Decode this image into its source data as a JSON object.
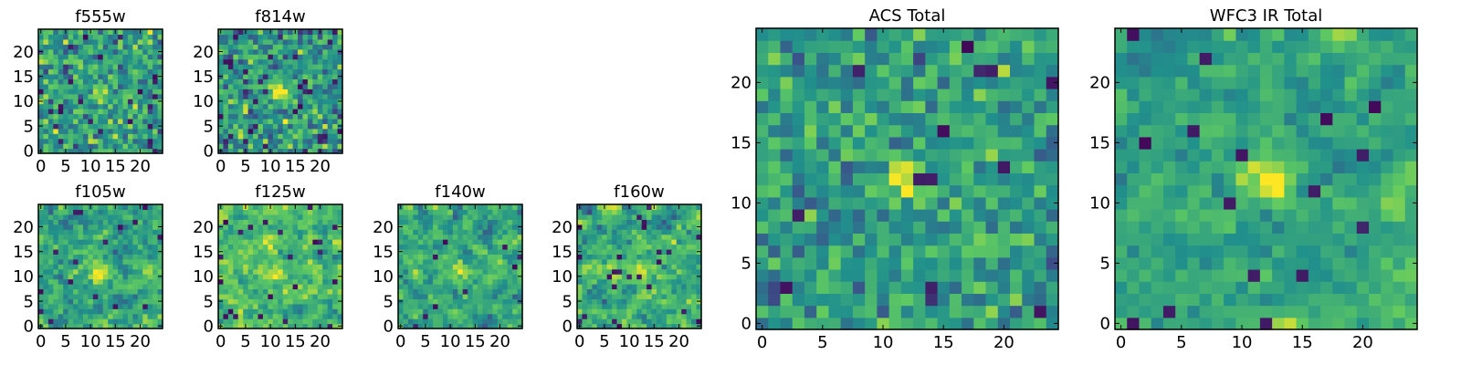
{
  "colormap": {
    "name": "viridis",
    "stops": [
      "#440154",
      "#3b528b",
      "#21918c",
      "#5ec962",
      "#fde725"
    ]
  },
  "chart_data": [
    {
      "type": "heatmap",
      "title": "f555w",
      "grid_size": 25,
      "xticks": [
        "0",
        "5",
        "10",
        "15",
        "20"
      ],
      "yticks": [
        "0",
        "5",
        "10",
        "15",
        "20"
      ],
      "xlim": [
        0,
        25
      ],
      "ylim": [
        0,
        25
      ],
      "source_center": [
        12,
        12
      ],
      "source_strength": 0.35,
      "noise_mean": 0.56,
      "noise_std": 0.15,
      "seed": 11,
      "smooth": 0
    },
    {
      "type": "heatmap",
      "title": "f814w",
      "grid_size": 25,
      "xticks": [
        "0",
        "5",
        "10",
        "15",
        "20"
      ],
      "yticks": [
        "0",
        "5",
        "10",
        "15",
        "20"
      ],
      "xlim": [
        0,
        25
      ],
      "ylim": [
        0,
        25
      ],
      "source_center": [
        12,
        12
      ],
      "source_strength": 0.6,
      "noise_mean": 0.52,
      "noise_std": 0.16,
      "seed": 23,
      "smooth": 0
    },
    {
      "type": "heatmap",
      "title": "f105w",
      "grid_size": 25,
      "xticks": [
        "0",
        "5",
        "10",
        "15",
        "20"
      ],
      "yticks": [
        "0",
        "5",
        "10",
        "15",
        "20"
      ],
      "xlim": [
        0,
        25
      ],
      "ylim": [
        0,
        25
      ],
      "source_center": [
        12,
        11
      ],
      "source_strength": 0.3,
      "noise_mean": 0.6,
      "noise_std": 0.17,
      "seed": 37,
      "smooth": 1
    },
    {
      "type": "heatmap",
      "title": "f125w",
      "grid_size": 25,
      "xticks": [
        "0",
        "5",
        "10",
        "15",
        "20"
      ],
      "yticks": [
        "0",
        "5",
        "10",
        "15",
        "20"
      ],
      "xlim": [
        0,
        25
      ],
      "ylim": [
        0,
        25
      ],
      "source_center": [
        12,
        11
      ],
      "source_strength": 0.3,
      "noise_mean": 0.68,
      "noise_std": 0.17,
      "seed": 41,
      "smooth": 1
    },
    {
      "type": "heatmap",
      "title": "f140w",
      "grid_size": 25,
      "xticks": [
        "0",
        "5",
        "10",
        "15",
        "20"
      ],
      "yticks": [
        "0",
        "5",
        "10",
        "15",
        "20"
      ],
      "xlim": [
        0,
        25
      ],
      "ylim": [
        0,
        25
      ],
      "source_center": [
        12,
        11
      ],
      "source_strength": 0.3,
      "noise_mean": 0.6,
      "noise_std": 0.17,
      "seed": 53,
      "smooth": 1
    },
    {
      "type": "heatmap",
      "title": "f160w",
      "grid_size": 25,
      "xticks": [
        "0",
        "5",
        "10",
        "15",
        "20"
      ],
      "yticks": [
        "0",
        "5",
        "10",
        "15",
        "20"
      ],
      "xlim": [
        0,
        25
      ],
      "ylim": [
        0,
        25
      ],
      "source_center": [
        12,
        11
      ],
      "source_strength": 0.3,
      "noise_mean": 0.6,
      "noise_std": 0.17,
      "seed": 67,
      "smooth": 1
    },
    {
      "type": "heatmap",
      "title": "ACS Total",
      "grid_size": 25,
      "xticks": [
        "0",
        "5",
        "10",
        "15",
        "20"
      ],
      "yticks": [
        "0",
        "5",
        "10",
        "15",
        "20"
      ],
      "xlim": [
        0,
        25
      ],
      "ylim": [
        0,
        25
      ],
      "source_center": [
        12,
        12
      ],
      "source_strength": 0.5,
      "noise_mean": 0.55,
      "noise_std": 0.13,
      "seed": 79,
      "smooth": 0
    },
    {
      "type": "heatmap",
      "title": "WFC3 IR Total",
      "grid_size": 25,
      "xticks": [
        "0",
        "5",
        "10",
        "15",
        "20"
      ],
      "yticks": [
        "0",
        "5",
        "10",
        "15",
        "20"
      ],
      "xlim": [
        0,
        25
      ],
      "ylim": [
        0,
        25
      ],
      "source_center": [
        12,
        12
      ],
      "source_strength": 0.4,
      "noise_mean": 0.58,
      "noise_std": 0.13,
      "seed": 97,
      "smooth": 1
    }
  ]
}
